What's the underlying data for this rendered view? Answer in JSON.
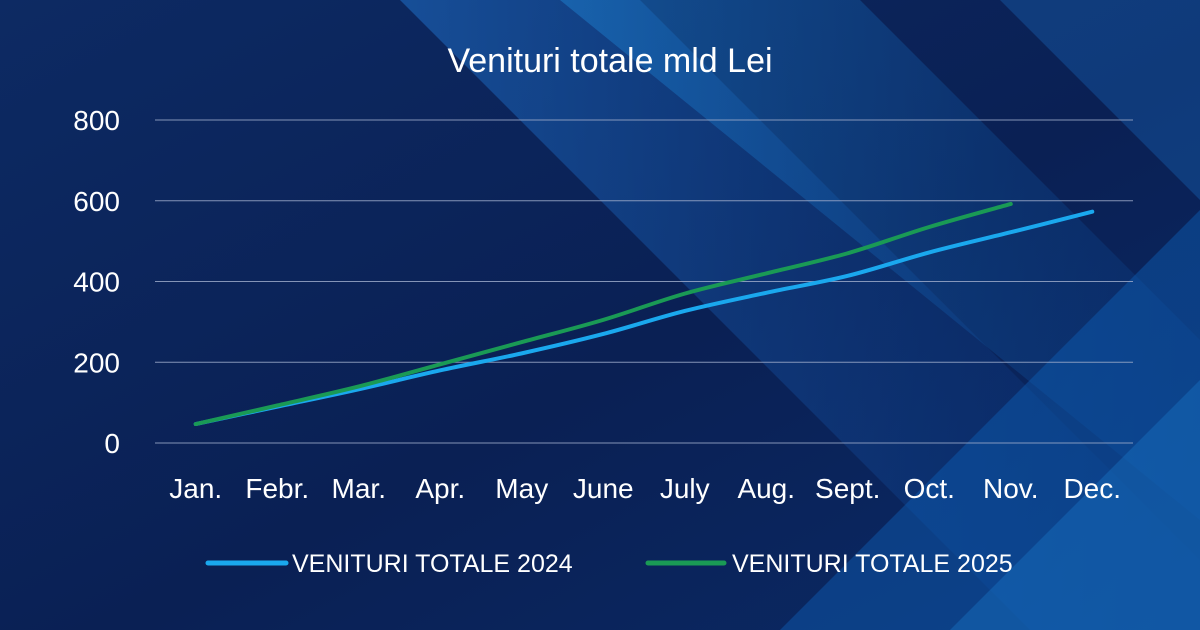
{
  "chart_data": {
    "type": "line",
    "title": "Venituri totale mld Lei",
    "xlabel": "",
    "ylabel": "",
    "categories": [
      "Jan.",
      "Febr.",
      "Mar.",
      "Apr.",
      "May",
      "June",
      "July",
      "Aug.",
      "Sept.",
      "Oct.",
      "Nov.",
      "Dec."
    ],
    "yticks": [
      "0",
      "200",
      "400",
      "600",
      "800"
    ],
    "ylim": [
      0,
      800
    ],
    "grid": true,
    "legend_position": "bottom",
    "series": [
      {
        "name": "VENITURI TOTALE 2024",
        "color": "#1aa8ee",
        "values": [
          47,
          90,
          133,
          180,
          222,
          270,
          327,
          372,
          414,
          472,
          522,
          573
        ]
      },
      {
        "name": "VENITURI TOTALE 2025",
        "color": "#1a9a55",
        "values": [
          47,
          93,
          140,
          195,
          250,
          305,
          370,
          420,
          470,
          535,
          592,
          null
        ]
      }
    ]
  },
  "colors": {
    "background": "#0b2456",
    "gridline": "#9aa8c8",
    "text": "#ffffff"
  }
}
